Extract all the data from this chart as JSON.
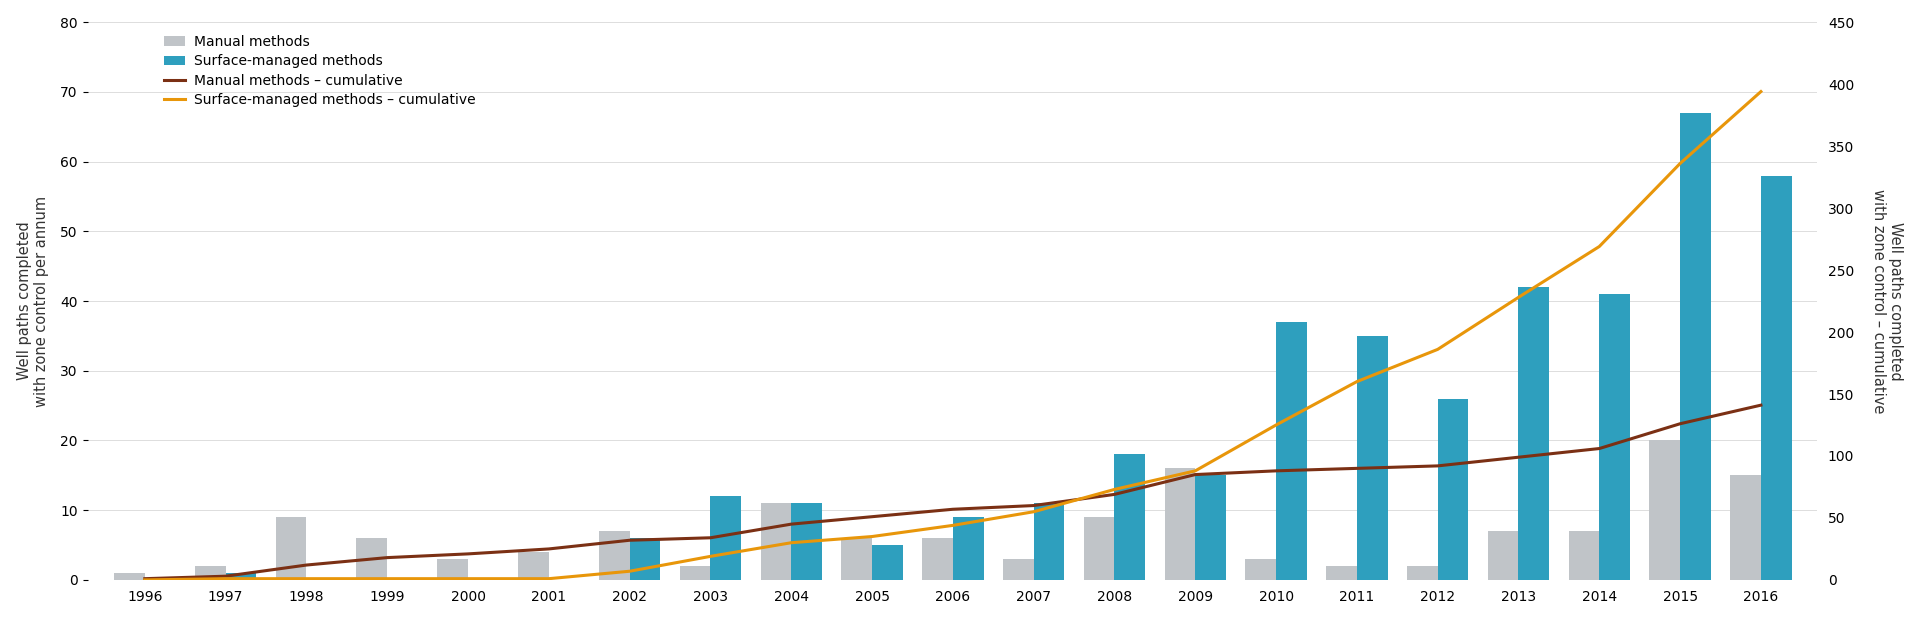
{
  "years": [
    1996,
    1997,
    1998,
    1999,
    2000,
    2001,
    2002,
    2003,
    2004,
    2005,
    2006,
    2007,
    2008,
    2009,
    2010,
    2011,
    2012,
    2013,
    2014,
    2015,
    2016
  ],
  "manual": [
    1,
    2,
    9,
    6,
    3,
    4,
    7,
    2,
    11,
    6,
    6,
    3,
    9,
    16,
    3,
    2,
    2,
    7,
    7,
    20,
    15
  ],
  "surface": [
    0,
    1,
    0,
    0,
    0,
    0,
    6,
    12,
    11,
    5,
    9,
    11,
    18,
    15,
    37,
    35,
    26,
    42,
    41,
    67,
    58
  ],
  "manual_cumulative": [
    1,
    3,
    12,
    18,
    21,
    25,
    32,
    34,
    45,
    51,
    57,
    60,
    69,
    85,
    88,
    90,
    92,
    99,
    106,
    126,
    141
  ],
  "surface_cumulative": [
    0,
    1,
    1,
    1,
    1,
    1,
    7,
    19,
    30,
    35,
    44,
    55,
    73,
    88,
    125,
    160,
    186,
    228,
    269,
    336,
    394
  ],
  "manual_color": "#c0c4c8",
  "surface_color": "#2e9fbe",
  "manual_cum_color": "#7b3014",
  "surface_cum_color": "#e8960a",
  "left_ylim": [
    0,
    80
  ],
  "right_ylim": [
    0,
    450
  ],
  "left_yticks": [
    0,
    10,
    20,
    30,
    40,
    50,
    60,
    70,
    80
  ],
  "right_yticks": [
    0,
    50,
    100,
    150,
    200,
    250,
    300,
    350,
    400,
    450
  ],
  "ylabel_left": "Well paths completed\nwith zone control per annum",
  "ylabel_right": "Well paths completed\nwith zone control – cumulative",
  "legend_labels": [
    "Manual methods",
    "Surface-managed methods",
    "Manual methods – cumulative",
    "Surface-managed methods – cumulative"
  ],
  "background_color": "#ffffff",
  "bar_width": 0.38
}
